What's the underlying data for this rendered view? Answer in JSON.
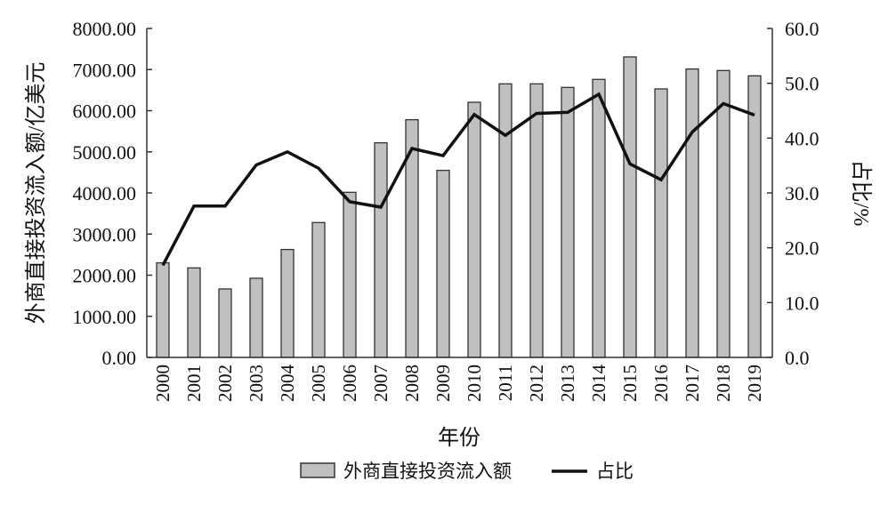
{
  "chart_data": {
    "type": "bar+line",
    "categories": [
      "2000",
      "2001",
      "2002",
      "2003",
      "2004",
      "2005",
      "2006",
      "2007",
      "2008",
      "2009",
      "2010",
      "2011",
      "2012",
      "2013",
      "2014",
      "2015",
      "2016",
      "2017",
      "2018",
      "2019"
    ],
    "series": [
      {
        "name": "外商直接投资流入额",
        "type": "bar",
        "axis": "left",
        "values": [
          2300,
          2177,
          1665,
          1925,
          2625,
          3280,
          4015,
          5219,
          5781,
          4549,
          6205,
          6653,
          6653,
          6566,
          6761,
          7308,
          6530,
          7014,
          6977,
          6848
        ]
      },
      {
        "name": "占比",
        "type": "line",
        "axis": "right",
        "values": [
          16.8,
          27.6,
          27.6,
          35.1,
          37.5,
          34.5,
          28.4,
          27.4,
          38.1,
          36.8,
          44.3,
          40.5,
          44.5,
          44.7,
          48.0,
          35.3,
          32.4,
          41.1,
          46.3,
          44.2
        ]
      }
    ],
    "xlabel": "年份",
    "ylabel": "外商直接投资流入额/亿美元",
    "y2label": "占比/%",
    "ylim": [
      0,
      8000
    ],
    "y2lim": [
      0,
      60
    ],
    "yticks": [
      "0.00",
      "1000.00",
      "2000.00",
      "3000.00",
      "4000.00",
      "5000.00",
      "6000.00",
      "7000.00",
      "8000.00"
    ],
    "y2ticks": [
      "0.0",
      "10.0",
      "20.0",
      "30.0",
      "40.0",
      "50.0",
      "60.0"
    ],
    "legend": [
      "外商直接投资流入额",
      "占比"
    ],
    "legend_position": "bottom",
    "grid": false,
    "colors": {
      "bar": "#c0c0c0",
      "bar_edge": "#333333",
      "line": "#111111"
    }
  }
}
